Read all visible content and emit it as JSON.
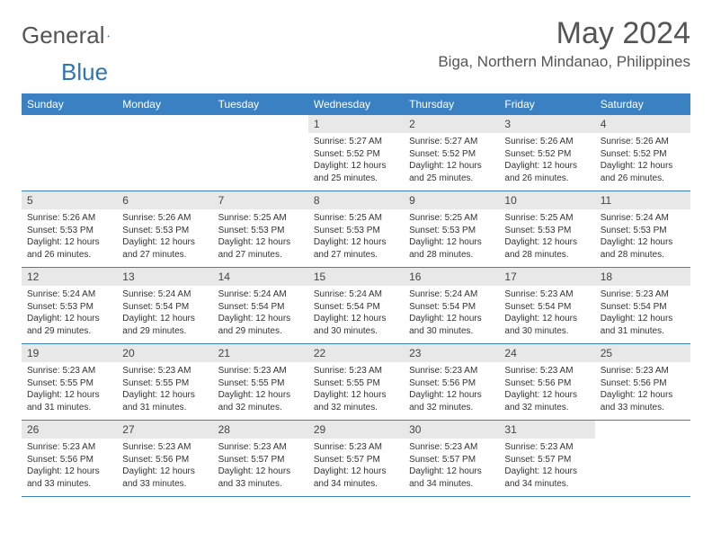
{
  "logo": {
    "text1": "General",
    "text2": "Blue"
  },
  "title": "May 2024",
  "location": "Biga, Northern Mindanao, Philippines",
  "weekdays": [
    "Sunday",
    "Monday",
    "Tuesday",
    "Wednesday",
    "Thursday",
    "Friday",
    "Saturday"
  ],
  "colors": {
    "header_bg": "#3a81c4",
    "header_text": "#ffffff",
    "daynum_bg": "#e8e8e8",
    "border": "#3a81c4",
    "text": "#333333",
    "title_text": "#555555"
  },
  "weeks": [
    [
      {
        "n": "",
        "sunrise": "",
        "sunset": "",
        "daylight": ""
      },
      {
        "n": "",
        "sunrise": "",
        "sunset": "",
        "daylight": ""
      },
      {
        "n": "",
        "sunrise": "",
        "sunset": "",
        "daylight": ""
      },
      {
        "n": "1",
        "sunrise": "Sunrise: 5:27 AM",
        "sunset": "Sunset: 5:52 PM",
        "daylight": "Daylight: 12 hours and 25 minutes."
      },
      {
        "n": "2",
        "sunrise": "Sunrise: 5:27 AM",
        "sunset": "Sunset: 5:52 PM",
        "daylight": "Daylight: 12 hours and 25 minutes."
      },
      {
        "n": "3",
        "sunrise": "Sunrise: 5:26 AM",
        "sunset": "Sunset: 5:52 PM",
        "daylight": "Daylight: 12 hours and 26 minutes."
      },
      {
        "n": "4",
        "sunrise": "Sunrise: 5:26 AM",
        "sunset": "Sunset: 5:52 PM",
        "daylight": "Daylight: 12 hours and 26 minutes."
      }
    ],
    [
      {
        "n": "5",
        "sunrise": "Sunrise: 5:26 AM",
        "sunset": "Sunset: 5:53 PM",
        "daylight": "Daylight: 12 hours and 26 minutes."
      },
      {
        "n": "6",
        "sunrise": "Sunrise: 5:26 AM",
        "sunset": "Sunset: 5:53 PM",
        "daylight": "Daylight: 12 hours and 27 minutes."
      },
      {
        "n": "7",
        "sunrise": "Sunrise: 5:25 AM",
        "sunset": "Sunset: 5:53 PM",
        "daylight": "Daylight: 12 hours and 27 minutes."
      },
      {
        "n": "8",
        "sunrise": "Sunrise: 5:25 AM",
        "sunset": "Sunset: 5:53 PM",
        "daylight": "Daylight: 12 hours and 27 minutes."
      },
      {
        "n": "9",
        "sunrise": "Sunrise: 5:25 AM",
        "sunset": "Sunset: 5:53 PM",
        "daylight": "Daylight: 12 hours and 28 minutes."
      },
      {
        "n": "10",
        "sunrise": "Sunrise: 5:25 AM",
        "sunset": "Sunset: 5:53 PM",
        "daylight": "Daylight: 12 hours and 28 minutes."
      },
      {
        "n": "11",
        "sunrise": "Sunrise: 5:24 AM",
        "sunset": "Sunset: 5:53 PM",
        "daylight": "Daylight: 12 hours and 28 minutes."
      }
    ],
    [
      {
        "n": "12",
        "sunrise": "Sunrise: 5:24 AM",
        "sunset": "Sunset: 5:53 PM",
        "daylight": "Daylight: 12 hours and 29 minutes."
      },
      {
        "n": "13",
        "sunrise": "Sunrise: 5:24 AM",
        "sunset": "Sunset: 5:54 PM",
        "daylight": "Daylight: 12 hours and 29 minutes."
      },
      {
        "n": "14",
        "sunrise": "Sunrise: 5:24 AM",
        "sunset": "Sunset: 5:54 PM",
        "daylight": "Daylight: 12 hours and 29 minutes."
      },
      {
        "n": "15",
        "sunrise": "Sunrise: 5:24 AM",
        "sunset": "Sunset: 5:54 PM",
        "daylight": "Daylight: 12 hours and 30 minutes."
      },
      {
        "n": "16",
        "sunrise": "Sunrise: 5:24 AM",
        "sunset": "Sunset: 5:54 PM",
        "daylight": "Daylight: 12 hours and 30 minutes."
      },
      {
        "n": "17",
        "sunrise": "Sunrise: 5:23 AM",
        "sunset": "Sunset: 5:54 PM",
        "daylight": "Daylight: 12 hours and 30 minutes."
      },
      {
        "n": "18",
        "sunrise": "Sunrise: 5:23 AM",
        "sunset": "Sunset: 5:54 PM",
        "daylight": "Daylight: 12 hours and 31 minutes."
      }
    ],
    [
      {
        "n": "19",
        "sunrise": "Sunrise: 5:23 AM",
        "sunset": "Sunset: 5:55 PM",
        "daylight": "Daylight: 12 hours and 31 minutes."
      },
      {
        "n": "20",
        "sunrise": "Sunrise: 5:23 AM",
        "sunset": "Sunset: 5:55 PM",
        "daylight": "Daylight: 12 hours and 31 minutes."
      },
      {
        "n": "21",
        "sunrise": "Sunrise: 5:23 AM",
        "sunset": "Sunset: 5:55 PM",
        "daylight": "Daylight: 12 hours and 32 minutes."
      },
      {
        "n": "22",
        "sunrise": "Sunrise: 5:23 AM",
        "sunset": "Sunset: 5:55 PM",
        "daylight": "Daylight: 12 hours and 32 minutes."
      },
      {
        "n": "23",
        "sunrise": "Sunrise: 5:23 AM",
        "sunset": "Sunset: 5:56 PM",
        "daylight": "Daylight: 12 hours and 32 minutes."
      },
      {
        "n": "24",
        "sunrise": "Sunrise: 5:23 AM",
        "sunset": "Sunset: 5:56 PM",
        "daylight": "Daylight: 12 hours and 32 minutes."
      },
      {
        "n": "25",
        "sunrise": "Sunrise: 5:23 AM",
        "sunset": "Sunset: 5:56 PM",
        "daylight": "Daylight: 12 hours and 33 minutes."
      }
    ],
    [
      {
        "n": "26",
        "sunrise": "Sunrise: 5:23 AM",
        "sunset": "Sunset: 5:56 PM",
        "daylight": "Daylight: 12 hours and 33 minutes."
      },
      {
        "n": "27",
        "sunrise": "Sunrise: 5:23 AM",
        "sunset": "Sunset: 5:56 PM",
        "daylight": "Daylight: 12 hours and 33 minutes."
      },
      {
        "n": "28",
        "sunrise": "Sunrise: 5:23 AM",
        "sunset": "Sunset: 5:57 PM",
        "daylight": "Daylight: 12 hours and 33 minutes."
      },
      {
        "n": "29",
        "sunrise": "Sunrise: 5:23 AM",
        "sunset": "Sunset: 5:57 PM",
        "daylight": "Daylight: 12 hours and 34 minutes."
      },
      {
        "n": "30",
        "sunrise": "Sunrise: 5:23 AM",
        "sunset": "Sunset: 5:57 PM",
        "daylight": "Daylight: 12 hours and 34 minutes."
      },
      {
        "n": "31",
        "sunrise": "Sunrise: 5:23 AM",
        "sunset": "Sunset: 5:57 PM",
        "daylight": "Daylight: 12 hours and 34 minutes."
      },
      {
        "n": "",
        "sunrise": "",
        "sunset": "",
        "daylight": ""
      }
    ]
  ]
}
